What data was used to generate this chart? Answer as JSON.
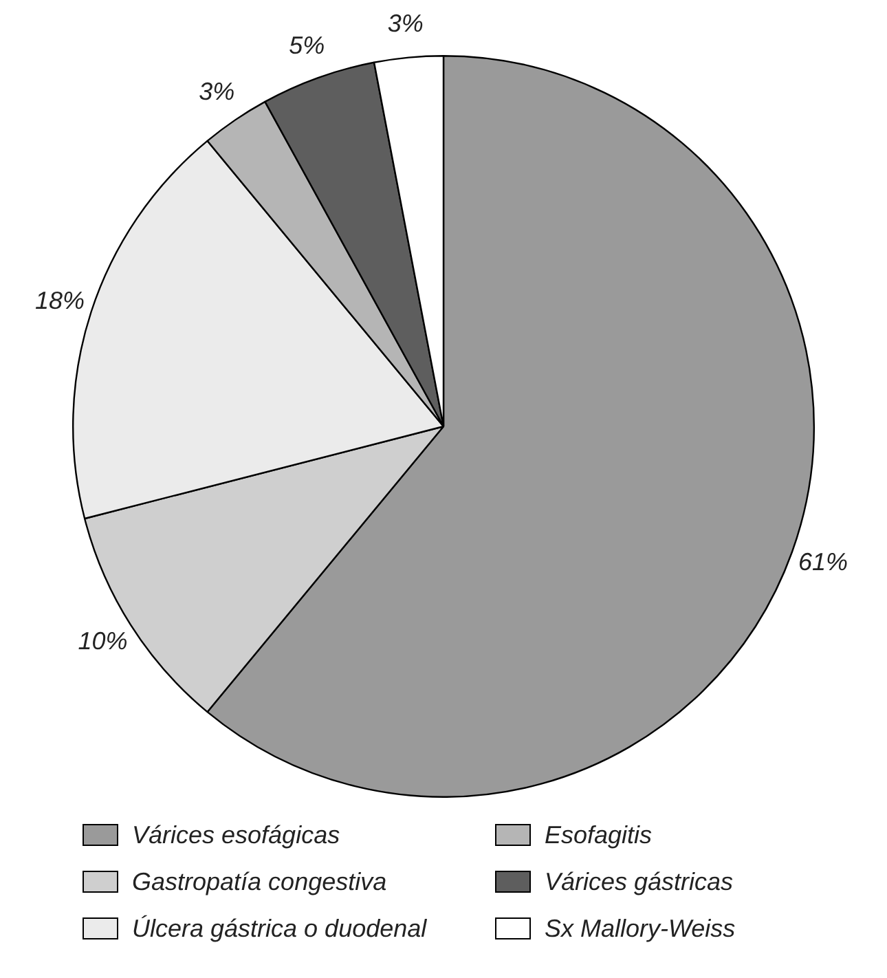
{
  "chart_data": {
    "type": "pie",
    "categories": [
      "Várices esofágicas",
      "Gastropatía congestiva",
      "Úlcera gástrica o duodenal",
      "Esofagitis",
      "Várices gástricas",
      "Sx Mallory-Weiss"
    ],
    "values": [
      61,
      10,
      18,
      3,
      5,
      3
    ],
    "colors": [
      "#9a9a9a",
      "#cfcfcf",
      "#ebebeb",
      "#b5b5b5",
      "#5e5e5e",
      "#ffffff"
    ],
    "value_labels": [
      "61%",
      "10%",
      "18%",
      "3%",
      "5%",
      "3%"
    ],
    "legend": "bottom"
  }
}
